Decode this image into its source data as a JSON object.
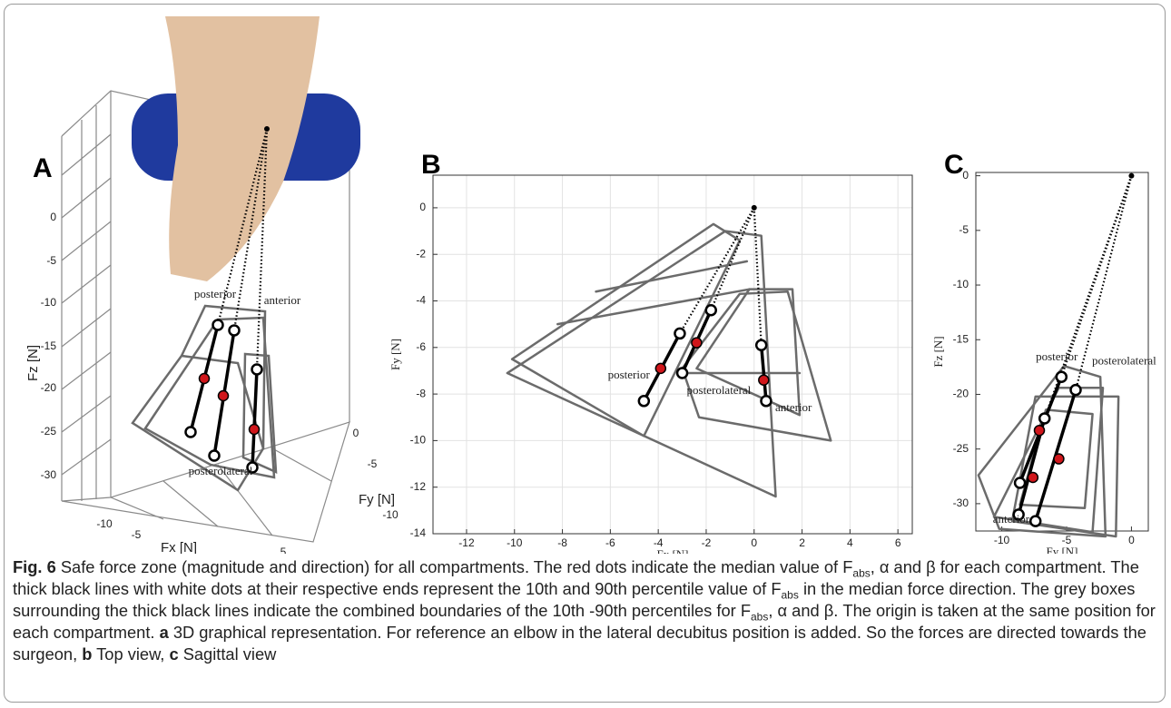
{
  "panel_a": {
    "panel": "A",
    "zlabel": "Fz [N]",
    "xlabel": "Fx [N]",
    "ylabel": "Fy [N]",
    "zticks": [
      0,
      -5,
      -10,
      -15,
      -20,
      -25,
      -30
    ],
    "xticks": [
      -10,
      -5,
      5
    ],
    "yticks": [
      0,
      -5,
      -10
    ],
    "labels": [
      "posterior",
      "anterior",
      "posterolateral"
    ]
  },
  "chart_data": [
    {
      "type": "line",
      "panel": "B",
      "xlabel": "Fx [N]",
      "ylabel": "Fy [N]",
      "xlim": [
        -13.4,
        6.6
      ],
      "ylim": [
        -14,
        1.4
      ],
      "xticks": [
        -12,
        -10,
        -8,
        -6,
        -4,
        -2,
        0,
        2,
        4,
        6
      ],
      "yticks": [
        0,
        -2,
        -4,
        -6,
        -8,
        -10,
        -12,
        -14
      ],
      "grid": true,
      "outline_color": "#6b6b6b",
      "median_color": "#d0161b",
      "origin": [
        0,
        0
      ],
      "segments": [
        {
          "name": "posterior",
          "start": [
            -3.1,
            -5.4
          ],
          "median": [
            -3.9,
            -6.9
          ],
          "end": [
            -4.6,
            -8.3
          ]
        },
        {
          "name": "posterolateral",
          "start": [
            -1.8,
            -4.4
          ],
          "median": [
            -2.4,
            -5.8
          ],
          "end": [
            -3.0,
            -7.1
          ]
        },
        {
          "name": "anterior",
          "start": [
            0.3,
            -5.9
          ],
          "median": [
            0.4,
            -7.4
          ],
          "end": [
            0.5,
            -8.3
          ]
        }
      ],
      "boxes": [
        [
          [
            -1.7,
            -0.7
          ],
          [
            -10.1,
            -6.5
          ],
          [
            -4.6,
            -9.8
          ],
          [
            -0.6,
            -1.4
          ]
        ],
        [
          [
            -1.2,
            -1.0
          ],
          [
            -10.3,
            -7.1
          ],
          [
            0.9,
            -12.4
          ],
          [
            0.3,
            -1.2
          ]
        ],
        [
          [
            -0.6,
            -3.7
          ],
          [
            -3.0,
            -6.9
          ],
          [
            -2.3,
            -9.0
          ],
          [
            3.2,
            -10.0
          ],
          [
            1.4,
            -3.6
          ]
        ],
        [
          [
            -0.2,
            -3.5
          ],
          [
            -2.4,
            -6.9
          ],
          [
            1.9,
            -8.9
          ],
          [
            1.6,
            -3.5
          ]
        ],
        [
          [
            -6.6,
            -3.6
          ],
          [
            -0.3,
            -2.3
          ]
        ],
        [
          [
            -8.2,
            -5.0
          ],
          [
            -0.2,
            -3.5
          ]
        ],
        [
          [
            -3.1,
            -7.1
          ],
          [
            1.9,
            -7.1
          ]
        ]
      ]
    },
    {
      "type": "line",
      "panel": "C",
      "xlabel": "Fy [N]",
      "ylabel": "Fz [N]",
      "xlim": [
        -12,
        1.3
      ],
      "ylim": [
        -32.5,
        0.3
      ],
      "xticks": [
        -10,
        -5,
        0
      ],
      "yticks": [
        0,
        -5,
        -10,
        -15,
        -20,
        -25,
        -30
      ],
      "grid": false,
      "outline_color": "#6b6b6b",
      "median_color": "#d0161b",
      "origin": [
        0,
        0
      ],
      "segments": [
        {
          "name": "posterior",
          "start": [
            -5.4,
            -18.4
          ],
          "median": [
            -7.1,
            -23.3
          ],
          "end": [
            -8.6,
            -28.1
          ]
        },
        {
          "name": "posterolateral",
          "start": [
            -4.3,
            -19.6
          ],
          "median": [
            -5.6,
            -25.9
          ],
          "end": [
            -7.4,
            -31.6
          ]
        },
        {
          "name": "anterior",
          "start": [
            -6.7,
            -22.2
          ],
          "median": [
            -7.6,
            -27.6
          ],
          "end": [
            -8.7,
            -31.0
          ]
        }
      ],
      "boxes": [
        [
          [
            -5.2,
            -17.4
          ],
          [
            -11.8,
            -27.4
          ],
          [
            -10.2,
            -32.3
          ],
          [
            -2.0,
            -33.0
          ],
          [
            -2.4,
            -18.4
          ]
        ],
        [
          [
            -7.4,
            -20.2
          ],
          [
            -9.2,
            -31.6
          ],
          [
            -1.2,
            -33.0
          ],
          [
            -1.0,
            -20.2
          ]
        ],
        [
          [
            -6.6,
            -21.4
          ],
          [
            -8.6,
            -30.1
          ],
          [
            -3.6,
            -30.4
          ],
          [
            -3.0,
            -21.8
          ]
        ],
        [
          [
            -5.6,
            -19.4
          ],
          [
            -10.6,
            -31.2
          ],
          [
            -3.0,
            -32.6
          ],
          [
            -2.2,
            -19.4
          ]
        ]
      ]
    }
  ],
  "caption": [
    "Fig. 6",
    " Safe force zone (magnitude and direction) for all compartments. The red dots indicate the median value of F",
    "abs",
    ", α and β for each compartment. The thick black lines with white dots at their respective ends represent the 10th and 90th percentile value of F",
    "abs",
    " in the median force direction. The grey boxes surrounding the thick black lines indicate the combined boundaries of the 10th -90th percentiles for F",
    "abs",
    ", α and β. The origin is taken at the same position for each compartment. ",
    "a",
    " 3D graphical representation. For reference an elbow in the lateral decubitus position is added. So the forces are directed towards the surgeon, ",
    "b",
    " Top view, ",
    "c",
    " Sagittal view"
  ]
}
